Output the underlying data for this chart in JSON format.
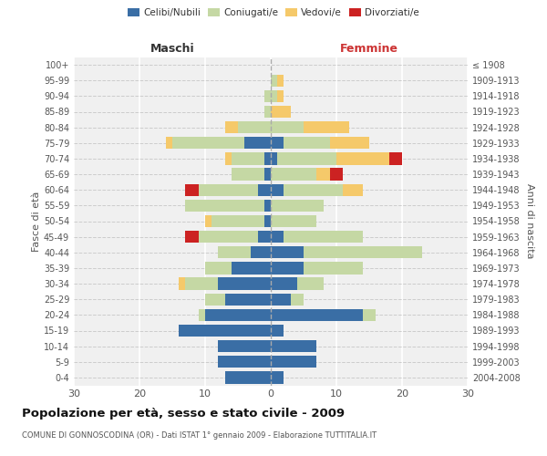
{
  "age_groups": [
    "0-4",
    "5-9",
    "10-14",
    "15-19",
    "20-24",
    "25-29",
    "30-34",
    "35-39",
    "40-44",
    "45-49",
    "50-54",
    "55-59",
    "60-64",
    "65-69",
    "70-74",
    "75-79",
    "80-84",
    "85-89",
    "90-94",
    "95-99",
    "100+"
  ],
  "birth_years": [
    "2004-2008",
    "1999-2003",
    "1994-1998",
    "1989-1993",
    "1984-1988",
    "1979-1983",
    "1974-1978",
    "1969-1973",
    "1964-1968",
    "1959-1963",
    "1954-1958",
    "1949-1953",
    "1944-1948",
    "1939-1943",
    "1934-1938",
    "1929-1933",
    "1924-1928",
    "1919-1923",
    "1914-1918",
    "1909-1913",
    "≤ 1908"
  ],
  "male": {
    "celibi": [
      7,
      8,
      8,
      14,
      10,
      7,
      8,
      6,
      3,
      2,
      1,
      1,
      2,
      1,
      1,
      4,
      0,
      0,
      0,
      0,
      0
    ],
    "coniugati": [
      0,
      0,
      0,
      0,
      1,
      3,
      5,
      4,
      5,
      9,
      8,
      12,
      9,
      5,
      5,
      11,
      5,
      1,
      1,
      0,
      0
    ],
    "vedovi": [
      0,
      0,
      0,
      0,
      0,
      0,
      1,
      0,
      0,
      0,
      1,
      0,
      0,
      0,
      1,
      1,
      2,
      0,
      0,
      0,
      0
    ],
    "divorziati": [
      0,
      0,
      0,
      0,
      0,
      0,
      0,
      0,
      0,
      2,
      0,
      0,
      2,
      0,
      0,
      0,
      0,
      0,
      0,
      0,
      0
    ]
  },
  "female": {
    "nubili": [
      2,
      7,
      7,
      2,
      14,
      3,
      4,
      5,
      5,
      2,
      0,
      0,
      2,
      0,
      1,
      2,
      0,
      0,
      0,
      0,
      0
    ],
    "coniugate": [
      0,
      0,
      0,
      0,
      2,
      2,
      4,
      9,
      18,
      12,
      7,
      8,
      9,
      7,
      9,
      7,
      5,
      0,
      1,
      1,
      0
    ],
    "vedove": [
      0,
      0,
      0,
      0,
      0,
      0,
      0,
      0,
      0,
      0,
      0,
      0,
      3,
      2,
      8,
      6,
      7,
      3,
      1,
      1,
      0
    ],
    "divorziate": [
      0,
      0,
      0,
      0,
      0,
      0,
      0,
      0,
      0,
      0,
      0,
      0,
      0,
      2,
      2,
      0,
      0,
      0,
      0,
      0,
      0
    ]
  },
  "colors": {
    "celibi": "#3a6ea5",
    "coniugati": "#c5d8a4",
    "vedovi": "#f5c96a",
    "divorziati": "#cc2222"
  },
  "xlim": 30,
  "title": "Popolazione per età, sesso e stato civile - 2009",
  "subtitle": "COMUNE DI GONNOSCODINA (OR) - Dati ISTAT 1° gennaio 2009 - Elaborazione TUTTITALIA.IT",
  "ylabel_left": "Fasce di età",
  "ylabel_right": "Anni di nascita",
  "xlabel_left": "Maschi",
  "xlabel_right": "Femmine",
  "background_color": "#f0f0f0"
}
